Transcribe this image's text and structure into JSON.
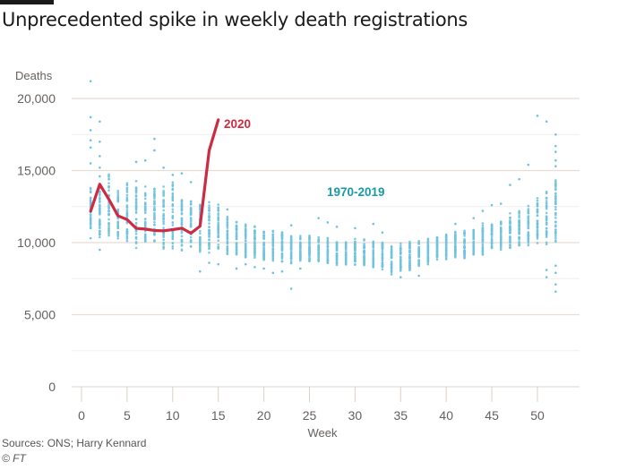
{
  "title": "Unprecedented spike in weekly death registrations",
  "source": "Sources: ONS; Harry Kennard",
  "copyright": "© FT",
  "colors": {
    "line2020": "#cc2b41",
    "scatter": "#6fc3de",
    "label1970": "#1a9aa5",
    "grid": "#e6ddd5",
    "text": "#66605c"
  },
  "chart_data": {
    "type": "line+scatter",
    "title": "Unprecedented spike in weekly death registrations",
    "ylabel": "Deaths",
    "xlabel": "Week",
    "xlim": [
      -1,
      54
    ],
    "ylim": [
      0,
      20000
    ],
    "yticks": [
      0,
      5000,
      10000,
      15000,
      20000
    ],
    "ytick_labels": [
      "0",
      "5,000",
      "10,000",
      "15,000",
      "20,000"
    ],
    "xticks": [
      0,
      5,
      10,
      15,
      20,
      25,
      30,
      35,
      40,
      45,
      50
    ],
    "xtick_labels": [
      "0",
      "5",
      "10",
      "15",
      "20",
      "25",
      "30",
      "35",
      "40",
      "45",
      "50"
    ],
    "grid": true,
    "series": [
      {
        "name": "2020",
        "label": "2020",
        "kind": "line",
        "x": [
          1,
          2,
          3,
          4,
          5,
          6,
          7,
          8,
          9,
          10,
          11,
          12,
          13,
          14,
          15
        ],
        "y": [
          12175,
          14050,
          13000,
          11860,
          11600,
          10990,
          10940,
          10840,
          10820,
          10900,
          11000,
          10650,
          11140,
          16390,
          18520
        ]
      },
      {
        "name": "1970-2019",
        "label": "1970-2019",
        "kind": "scatter",
        "weeks": [
          1,
          2,
          3,
          4,
          5,
          6,
          7,
          8,
          9,
          10,
          11,
          12,
          13,
          14,
          15,
          16,
          17,
          18,
          19,
          20,
          21,
          22,
          23,
          24,
          25,
          26,
          27,
          28,
          29,
          30,
          31,
          32,
          33,
          34,
          35,
          36,
          37,
          38,
          39,
          40,
          41,
          42,
          43,
          44,
          45,
          46,
          47,
          48,
          49,
          50,
          51,
          52
        ],
        "min": [
          10700,
          10200,
          10000,
          10000,
          9900,
          9600,
          9500,
          9500,
          9300,
          9400,
          9300,
          9300,
          9200,
          9200,
          9000,
          9000,
          8900,
          8700,
          8700,
          8700,
          8600,
          8600,
          8500,
          8600,
          8500,
          8500,
          8400,
          8400,
          8300,
          8300,
          8300,
          8200,
          8000,
          7900,
          7900,
          8000,
          8200,
          8400,
          8600,
          8700,
          8800,
          8900,
          9000,
          9100,
          9300,
          9400,
          9500,
          9600,
          9700,
          9800,
          9700,
          9000
        ],
        "max": [
          14000,
          14300,
          15200,
          13800,
          14400,
          14500,
          14000,
          14500,
          14300,
          14500,
          13300,
          13200,
          12800,
          13000,
          12700,
          12000,
          11700,
          11500,
          11300,
          11000,
          10900,
          10900,
          10600,
          10600,
          10600,
          10500,
          10400,
          10300,
          10300,
          10300,
          10300,
          10300,
          10100,
          9900,
          10100,
          10100,
          10300,
          10400,
          10500,
          10700,
          10900,
          11100,
          11200,
          11400,
          11600,
          11800,
          12100,
          12400,
          12700,
          13200,
          13800,
          14700
        ],
        "outliers": [
          [
            1,
            21200
          ],
          [
            1,
            18700
          ],
          [
            1,
            17800
          ],
          [
            1,
            17100
          ],
          [
            1,
            16600
          ],
          [
            1,
            15500
          ],
          [
            1,
            10300
          ],
          [
            2,
            18400
          ],
          [
            2,
            17000
          ],
          [
            2,
            16000
          ],
          [
            2,
            15200
          ],
          [
            2,
            14600
          ],
          [
            2,
            9500
          ],
          [
            4,
            11000
          ],
          [
            5,
            14000
          ],
          [
            6,
            15600
          ],
          [
            7,
            15700
          ],
          [
            8,
            17200
          ],
          [
            8,
            16400
          ],
          [
            9,
            15200
          ],
          [
            10,
            14700
          ],
          [
            11,
            14800
          ],
          [
            12,
            14200
          ],
          [
            13,
            8000
          ],
          [
            14,
            8600
          ],
          [
            15,
            8500
          ],
          [
            15,
            12400
          ],
          [
            16,
            12300
          ],
          [
            17,
            8200
          ],
          [
            18,
            8500
          ],
          [
            19,
            8300
          ],
          [
            20,
            8200
          ],
          [
            21,
            7900
          ],
          [
            22,
            8000
          ],
          [
            23,
            11200
          ],
          [
            23,
            6800
          ],
          [
            24,
            8200
          ],
          [
            26,
            11700
          ],
          [
            27,
            11400
          ],
          [
            28,
            11100
          ],
          [
            30,
            11000
          ],
          [
            31,
            9400
          ],
          [
            32,
            11300
          ],
          [
            33,
            10700
          ],
          [
            34,
            7800
          ],
          [
            35,
            7600
          ],
          [
            36,
            8100
          ],
          [
            37,
            7700
          ],
          [
            41,
            11300
          ],
          [
            43,
            11700
          ],
          [
            44,
            12200
          ],
          [
            45,
            12600
          ],
          [
            46,
            12700
          ],
          [
            47,
            14000
          ],
          [
            48,
            14400
          ],
          [
            49,
            15400
          ],
          [
            50,
            18800
          ],
          [
            51,
            18400
          ],
          [
            51,
            8100
          ],
          [
            51,
            7600
          ],
          [
            52,
            17500
          ],
          [
            52,
            16700
          ],
          [
            52,
            16300
          ],
          [
            52,
            15700
          ],
          [
            52,
            15300
          ],
          [
            52,
            8400
          ],
          [
            52,
            7900
          ],
          [
            52,
            7100
          ],
          [
            52,
            6600
          ]
        ]
      }
    ]
  }
}
